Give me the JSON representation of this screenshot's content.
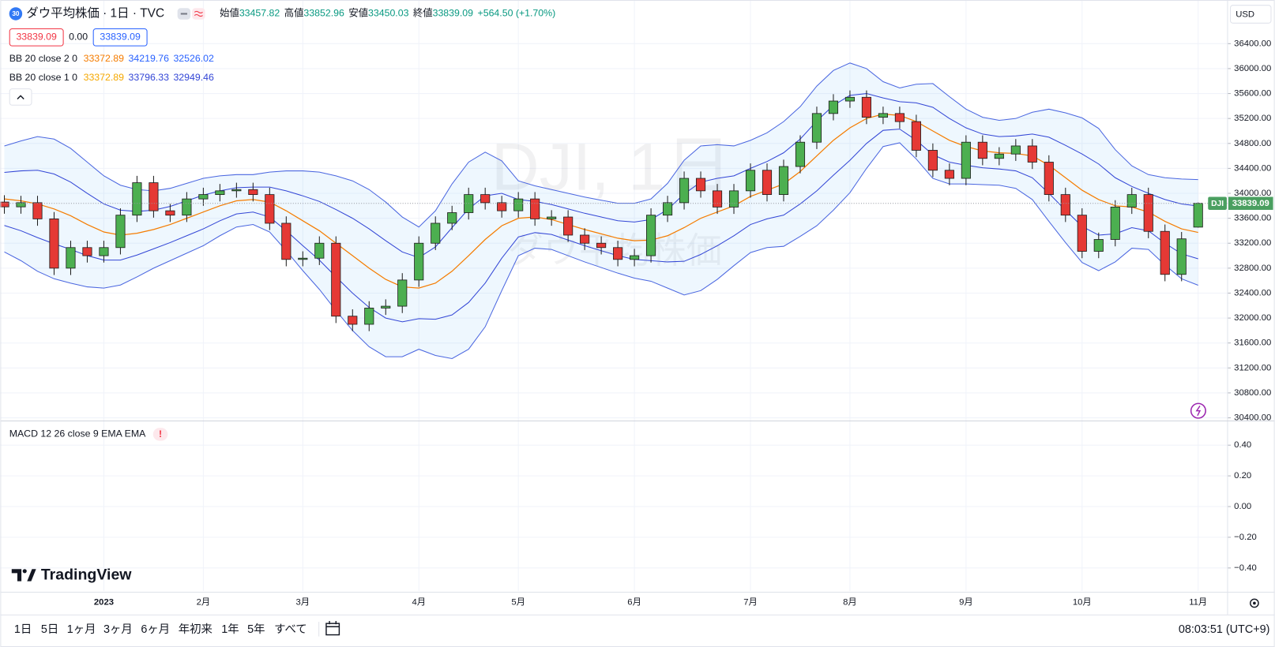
{
  "header": {
    "badge": "30",
    "title": "ダウ平均株価 · 1日 · TVC",
    "ohlc_labels": [
      "始値",
      "高値",
      "安値",
      "終値"
    ],
    "change": "+564.50 (+1.70%)",
    "bid": "33839.09",
    "spread": "0.00",
    "ask": "33839.09"
  },
  "currency": "USD",
  "watermark": {
    "symbol": "DJI, 1日",
    "name": "ダウ平均株価"
  },
  "logo": "TradingView",
  "toolbar": {
    "ranges": [
      "1日",
      "5日",
      "1ヶ月",
      "3ヶ月",
      "6ヶ月",
      "年初来",
      "1年",
      "5年",
      "すべて"
    ],
    "time": "08:03:51 (UTC+9)"
  },
  "chart_data": [
    {
      "type": "candlestick",
      "symbol_label": "DJI",
      "up_color": "#4caf50",
      "down_color": "#e53935",
      "grid": true,
      "ylim": [
        30370,
        37100
      ],
      "yticks": [
        {
          "value": 30400,
          "label": "30400.00"
        },
        {
          "value": 30800,
          "label": "30800.00"
        },
        {
          "value": 31200,
          "label": "31200.00"
        },
        {
          "value": 31600,
          "label": "31600.00"
        },
        {
          "value": 32000,
          "label": "32000.00"
        },
        {
          "value": 32400,
          "label": "32400.00"
        },
        {
          "value": 32800,
          "label": "32800.00"
        },
        {
          "value": 33200,
          "label": "33200.00"
        },
        {
          "value": 33600,
          "label": "33600.00"
        },
        {
          "value": 34000,
          "label": "34000.00"
        },
        {
          "value": 34400,
          "label": "34400.00"
        },
        {
          "value": 34800,
          "label": "34800.00"
        },
        {
          "value": 35200,
          "label": "35200.00"
        },
        {
          "value": 35600,
          "label": "35600.00"
        },
        {
          "value": 36000,
          "label": "36000.00"
        },
        {
          "value": 36400,
          "label": "36400.00"
        }
      ],
      "categories": [
        null,
        null,
        null,
        null,
        null,
        null,
        "2023",
        null,
        null,
        null,
        null,
        null,
        "2月",
        null,
        null,
        null,
        null,
        null,
        "3月",
        null,
        null,
        null,
        null,
        null,
        null,
        "4月",
        null,
        null,
        null,
        null,
        null,
        "5月",
        null,
        null,
        null,
        null,
        null,
        null,
        "6月",
        null,
        null,
        null,
        null,
        null,
        null,
        "7月",
        null,
        null,
        null,
        null,
        null,
        "8月",
        null,
        null,
        null,
        null,
        null,
        null,
        "9月",
        null,
        null,
        null,
        null,
        null,
        null,
        "10月",
        null,
        null,
        null,
        null,
        null,
        null,
        "11月"
      ],
      "open": [
        33860,
        33783,
        33850,
        33590,
        32800,
        33130,
        33000,
        33130,
        33650,
        34170,
        33720,
        33650,
        33910,
        33980,
        34040,
        34060,
        33980,
        33520,
        32940,
        32960,
        33200,
        32030,
        31900,
        32160,
        32190,
        32610,
        33200,
        33520,
        33690,
        33980,
        33850,
        33720,
        33910,
        33590,
        33620,
        33330,
        33200,
        33130,
        32940,
        33000,
        33650,
        33850,
        34240,
        34040,
        33780,
        34040,
        34370,
        33980,
        34430,
        34820,
        35280,
        35480,
        35540,
        35220,
        35280,
        35150,
        34690,
        34370,
        34240,
        34820,
        34560,
        34630,
        34760,
        34500,
        33980,
        33650,
        33070,
        33260,
        33780,
        33980,
        33390,
        32700,
        33457.82
      ],
      "high": [
        33970,
        33960,
        33960,
        33700,
        33240,
        33240,
        33240,
        33760,
        34280,
        34280,
        33830,
        34020,
        34090,
        34150,
        34170,
        34170,
        34090,
        33630,
        33070,
        33310,
        33310,
        32140,
        32270,
        32300,
        32720,
        33310,
        33630,
        33800,
        34090,
        34090,
        33960,
        34020,
        34020,
        33730,
        33730,
        33440,
        33310,
        33240,
        33110,
        33760,
        33960,
        34350,
        34350,
        34150,
        34150,
        34480,
        34480,
        34540,
        34930,
        35390,
        35590,
        35650,
        35650,
        35390,
        35390,
        35260,
        34800,
        34480,
        34930,
        34930,
        34740,
        34870,
        34870,
        34610,
        34090,
        33760,
        33370,
        33890,
        34090,
        34090,
        33500,
        33380,
        33852.96
      ],
      "low": [
        33673,
        33673,
        33480,
        32690,
        32690,
        32890,
        32890,
        33020,
        33540,
        33610,
        33540,
        33540,
        33800,
        33870,
        33930,
        33870,
        33410,
        32830,
        32830,
        32850,
        31920,
        31790,
        31790,
        32050,
        32080,
        32500,
        33090,
        33410,
        33580,
        33740,
        33610,
        33610,
        33480,
        33480,
        33220,
        33090,
        33020,
        32830,
        32830,
        32890,
        33540,
        33740,
        33930,
        33670,
        33670,
        33930,
        33870,
        33870,
        34320,
        34710,
        35170,
        35370,
        35110,
        35110,
        35040,
        34580,
        34260,
        34130,
        34130,
        34450,
        34450,
        34520,
        34390,
        33870,
        33540,
        32960,
        32960,
        33150,
        33670,
        33280,
        32590,
        32590,
        33450.03
      ],
      "close": [
        33783,
        33850,
        33590,
        32800,
        33130,
        33000,
        33130,
        33650,
        34170,
        33720,
        33650,
        33910,
        33980,
        34040,
        34060,
        33980,
        33520,
        32940,
        32960,
        33200,
        32030,
        31900,
        32160,
        32190,
        32610,
        33200,
        33520,
        33690,
        33980,
        33850,
        33720,
        33910,
        33590,
        33620,
        33330,
        33200,
        33130,
        32940,
        33000,
        33650,
        33850,
        34240,
        34040,
        33780,
        34040,
        34370,
        33980,
        34430,
        34820,
        35280,
        35480,
        35540,
        35220,
        35280,
        35150,
        34690,
        34370,
        34240,
        34820,
        34560,
        34630,
        34760,
        34500,
        33980,
        33650,
        33070,
        33260,
        33780,
        33980,
        33390,
        32700,
        33270,
        33839.09
      ],
      "bands": [
        {
          "name": "BB 20 close 2 0",
          "color": "#4a66e0",
          "basis_color": "#f57c00",
          "fill": "rgba(33,150,243,0.08)",
          "basis": [
            33910,
            33880,
            33830,
            33750,
            33640,
            33500,
            33380,
            33330,
            33360,
            33420,
            33500,
            33600,
            33700,
            33800,
            33880,
            33900,
            33860,
            33720,
            33560,
            33400,
            33200,
            33000,
            32800,
            32620,
            32500,
            32480,
            32560,
            32750,
            33000,
            33260,
            33480,
            33600,
            33620,
            33580,
            33500,
            33420,
            33350,
            33280,
            33240,
            33250,
            33320,
            33450,
            33600,
            33700,
            33800,
            33950,
            34050,
            34150,
            34350,
            34600,
            34850,
            35050,
            35200,
            35270,
            35250,
            35150,
            35000,
            34850,
            34750,
            34680,
            34650,
            34640,
            34600,
            34450,
            34250,
            34050,
            33900,
            33800,
            33780,
            33700,
            33550,
            33430,
            33372.89
          ],
          "upper": [
            34760,
            34840,
            34910,
            34870,
            34720,
            34500,
            34280,
            34130,
            34060,
            34040,
            34080,
            34160,
            34240,
            34280,
            34300,
            34300,
            34340,
            34360,
            34360,
            34340,
            34280,
            34200,
            34060,
            33860,
            33620,
            33460,
            33720,
            34150,
            34500,
            34660,
            34520,
            34200,
            34120,
            34060,
            34000,
            33940,
            33890,
            33840,
            33840,
            33910,
            34160,
            34530,
            34760,
            34780,
            34760,
            34850,
            34970,
            35150,
            35390,
            35720,
            35970,
            36090,
            36000,
            35790,
            35690,
            35750,
            35760,
            35550,
            35350,
            35220,
            35170,
            35200,
            35300,
            35350,
            35290,
            35210,
            35040,
            34700,
            34440,
            34300,
            34250,
            34230,
            34219.76
          ],
          "lower": [
            33060,
            32920,
            32750,
            32630,
            32560,
            32500,
            32480,
            32530,
            32660,
            32800,
            32920,
            33040,
            33160,
            33320,
            33460,
            33500,
            33380,
            33080,
            32760,
            32460,
            32120,
            31800,
            31540,
            31380,
            31380,
            31500,
            31400,
            31350,
            31500,
            31860,
            32440,
            33000,
            33120,
            33100,
            33000,
            32900,
            32810,
            32720,
            32640,
            32590,
            32480,
            32370,
            32440,
            32620,
            32840,
            33050,
            33130,
            33150,
            33310,
            33480,
            33730,
            34010,
            34400,
            34750,
            34810,
            34550,
            34240,
            34150,
            34150,
            34140,
            34130,
            34080,
            33900,
            33550,
            33210,
            32890,
            32760,
            32900,
            33120,
            33100,
            32850,
            32630,
            32526.02
          ]
        },
        {
          "name": "BB 20 close 1 0",
          "color": "#3346d6",
          "upper": [
            34335,
            34360,
            34370,
            34310,
            34180,
            34000,
            33830,
            33730,
            33710,
            33730,
            33790,
            33880,
            33970,
            34040,
            34090,
            34100,
            34100,
            34040,
            33960,
            33870,
            33740,
            33600,
            33430,
            33240,
            33060,
            32970,
            33140,
            33450,
            33750,
            33960,
            34000,
            33900,
            33870,
            33820,
            33750,
            33680,
            33620,
            33560,
            33540,
            33580,
            33740,
            33990,
            34180,
            34240,
            34280,
            34400,
            34510,
            34650,
            34870,
            35160,
            35410,
            35570,
            35600,
            35530,
            35470,
            35450,
            35380,
            35200,
            35050,
            34950,
            34910,
            34920,
            34950,
            34900,
            34770,
            34630,
            34470,
            34250,
            34110,
            34000,
            33900,
            33830,
            33796.33
          ],
          "lower": [
            33485,
            33400,
            33290,
            33190,
            33100,
            33000,
            32930,
            32930,
            33010,
            33110,
            33210,
            33320,
            33430,
            33560,
            33670,
            33700,
            33620,
            33400,
            33160,
            32930,
            32660,
            32400,
            32170,
            32000,
            31940,
            31990,
            31980,
            32050,
            32250,
            32560,
            32960,
            33300,
            33370,
            33340,
            33250,
            33160,
            33080,
            33000,
            32940,
            32920,
            32900,
            32910,
            33020,
            33160,
            33320,
            33500,
            33590,
            33650,
            33830,
            34040,
            34290,
            34530,
            34800,
            35010,
            35030,
            34850,
            34620,
            34500,
            34450,
            34410,
            34390,
            34360,
            34250,
            34000,
            33730,
            33470,
            33330,
            33350,
            33450,
            33400,
            33200,
            33030,
            32949.46
          ]
        }
      ]
    },
    {
      "type": "line",
      "title": "MACD 12 26 close 9 EMA EMA",
      "alert": "!",
      "grid": true,
      "ylim": [
        -0.55,
        0.55
      ],
      "yticks": [
        {
          "value": 0.4,
          "label": "0.40"
        },
        {
          "value": 0.2,
          "label": "0.20"
        },
        {
          "value": 0,
          "label": "0.00"
        },
        {
          "value": -0.2,
          "label": "−0.20"
        },
        {
          "value": -0.4,
          "label": "−0.40"
        }
      ]
    }
  ]
}
